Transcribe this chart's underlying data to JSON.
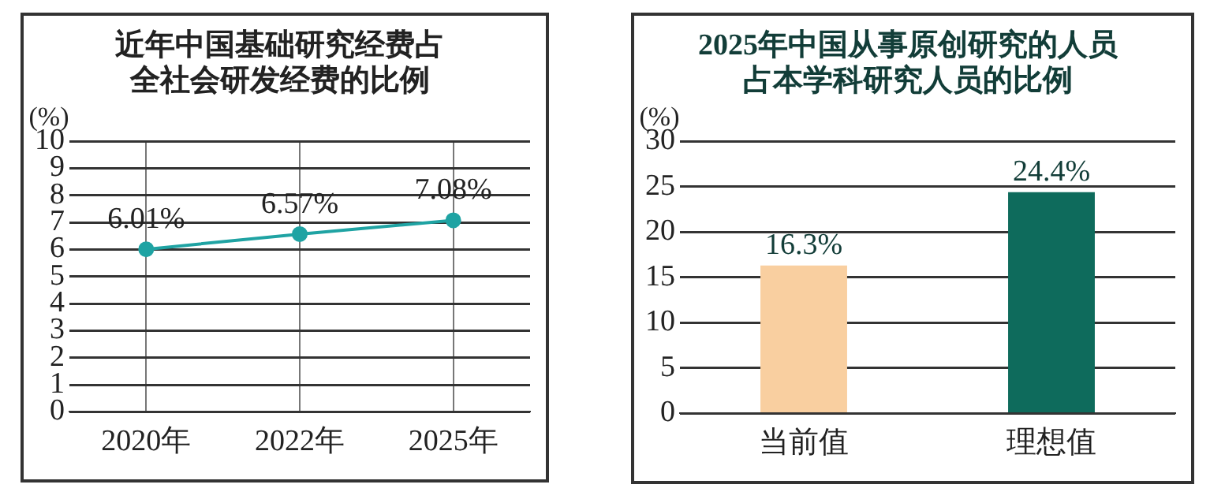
{
  "chart_data": [
    {
      "type": "line",
      "title": "近年中国基础研究经费占全社会研发经费的比例",
      "ylabel": "(%)",
      "categories": [
        "2020年",
        "2022年",
        "2025年"
      ],
      "series": [
        {
          "color": "#1fa3a3",
          "values": [
            6.01,
            6.57,
            7.08
          ],
          "value_labels": [
            "6.01%",
            "6.57%",
            "7.08%"
          ]
        }
      ],
      "ylim": [
        0,
        10
      ],
      "yticks": [
        0,
        1,
        2,
        3,
        4,
        5,
        6,
        7,
        8,
        9,
        10
      ],
      "grid": true,
      "marker": "circle",
      "line_style": "solid"
    },
    {
      "type": "bar",
      "title": "2025年中国从事原创研究的人员占本学科研究人员的比例",
      "ylabel": "(%)",
      "categories": [
        "当前值",
        "理想值"
      ],
      "values": [
        16.3,
        24.4
      ],
      "colors": [
        "#f9cfa0",
        "#0e6b5c"
      ],
      "value_labels": [
        "16.3%",
        "24.4%"
      ],
      "ylim": [
        0,
        30
      ],
      "yticks": [
        0,
        5,
        10,
        15,
        20,
        25,
        30
      ],
      "grid": "y"
    }
  ]
}
